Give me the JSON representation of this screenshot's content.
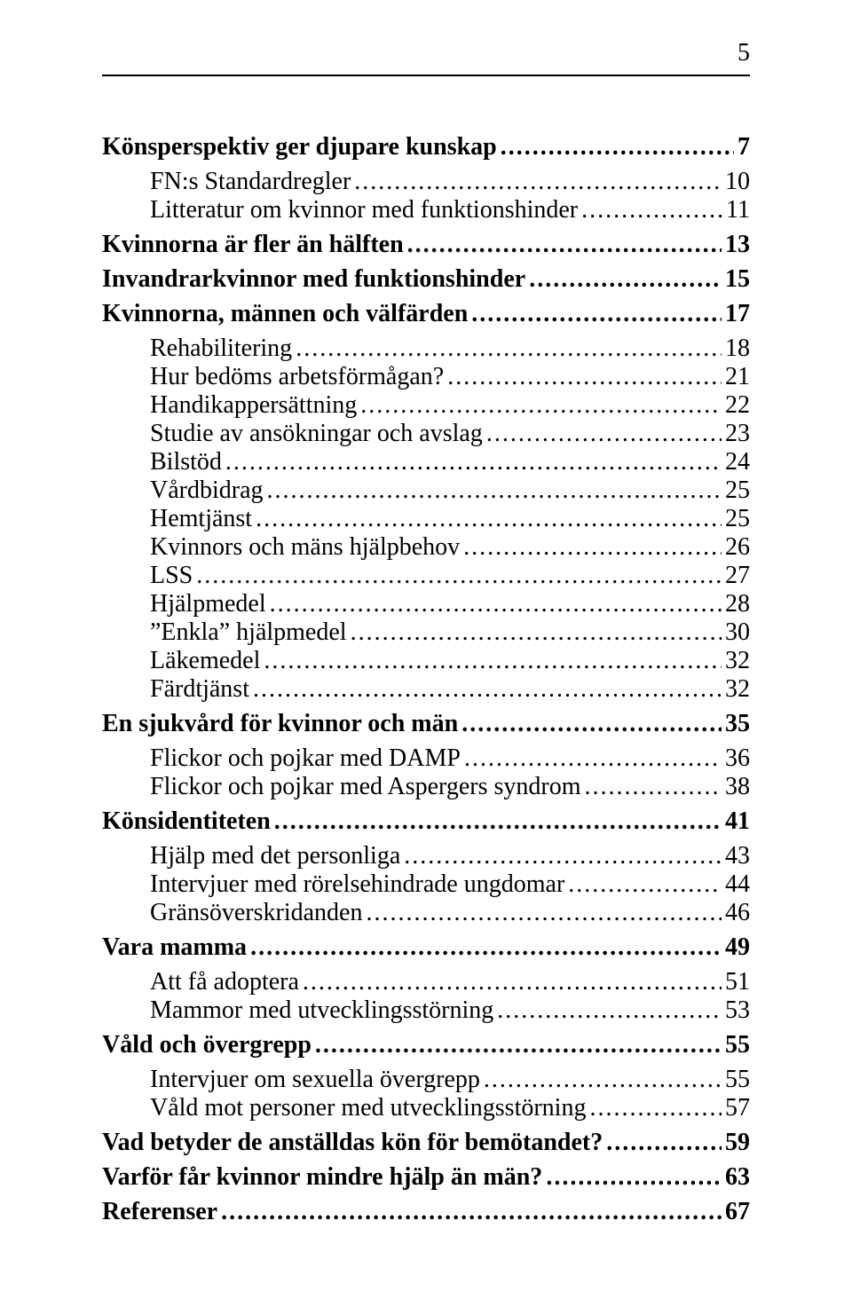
{
  "page_number": "5",
  "entries": [
    {
      "level": 1,
      "label": "Könsperspektiv ger djupare kunskap",
      "page": "7"
    },
    {
      "level": 2,
      "label": "FN:s Standardregler",
      "page": "10",
      "gapTop": true
    },
    {
      "level": 2,
      "label": "Litteratur om kvinnor med funktionshinder",
      "page": "11",
      "gapBottom": true
    },
    {
      "level": 1,
      "label": "Kvinnorna är fler än hälften",
      "page": "13"
    },
    {
      "level": 1,
      "label": "Invandrarkvinnor med funktionshinder",
      "page": "15"
    },
    {
      "level": 1,
      "label": "Kvinnorna, männen och välfärden",
      "page": "17"
    },
    {
      "level": 2,
      "label": "Rehabilitering",
      "page": "18",
      "gapTop": true
    },
    {
      "level": 2,
      "label": "Hur bedöms arbetsförmågan?",
      "page": "21"
    },
    {
      "level": 2,
      "label": "Handikappersättning",
      "page": "22"
    },
    {
      "level": 2,
      "label": "Studie av ansökningar och avslag",
      "page": "23"
    },
    {
      "level": 2,
      "label": "Bilstöd",
      "page": "24"
    },
    {
      "level": 2,
      "label": "Vårdbidrag",
      "page": "25"
    },
    {
      "level": 2,
      "label": "Hemtjänst",
      "page": "25"
    },
    {
      "level": 2,
      "label": "Kvinnors och mäns hjälpbehov",
      "page": "26"
    },
    {
      "level": 2,
      "label": "LSS",
      "page": "27"
    },
    {
      "level": 2,
      "label": "Hjälpmedel",
      "page": "28"
    },
    {
      "level": 2,
      "label": "”Enkla” hjälpmedel",
      "page": "30"
    },
    {
      "level": 2,
      "label": "Läkemedel",
      "page": "32"
    },
    {
      "level": 2,
      "label": "Färdtjänst",
      "page": "32",
      "gapBottom": true
    },
    {
      "level": 1,
      "label": "En sjukvård för kvinnor och män",
      "page": "35"
    },
    {
      "level": 2,
      "label": "Flickor och pojkar med DAMP",
      "page": "36",
      "gapTop": true
    },
    {
      "level": 2,
      "label": "Flickor och pojkar med Aspergers syndrom",
      "page": "38",
      "gapBottom": true
    },
    {
      "level": 1,
      "label": "Könsidentiteten",
      "page": "41"
    },
    {
      "level": 2,
      "label": "Hjälp med det personliga",
      "page": "43",
      "gapTop": true
    },
    {
      "level": 2,
      "label": "Intervjuer med rörelsehindrade ungdomar",
      "page": "44"
    },
    {
      "level": 2,
      "label": "Gränsöverskridanden",
      "page": "46",
      "gapBottom": true
    },
    {
      "level": 1,
      "label": "Vara mamma",
      "page": "49"
    },
    {
      "level": 2,
      "label": "Att få adoptera",
      "page": "51",
      "gapTop": true
    },
    {
      "level": 2,
      "label": "Mammor med utvecklingsstörning",
      "page": "53",
      "gapBottom": true
    },
    {
      "level": 1,
      "label": "Våld och övergrepp",
      "page": "55"
    },
    {
      "level": 2,
      "label": "Intervjuer om sexuella övergrepp",
      "page": "55",
      "gapTop": true
    },
    {
      "level": 2,
      "label": "Våld mot personer med utvecklingsstörning",
      "page": "57",
      "gapBottom": true
    },
    {
      "level": 1,
      "label": "Vad betyder de anställdas kön för bemötandet?",
      "page": "59"
    },
    {
      "level": 1,
      "label": "Varför får kvinnor mindre hjälp än män?",
      "page": "63"
    },
    {
      "level": 1,
      "label": "Referenser",
      "page": "67"
    }
  ]
}
